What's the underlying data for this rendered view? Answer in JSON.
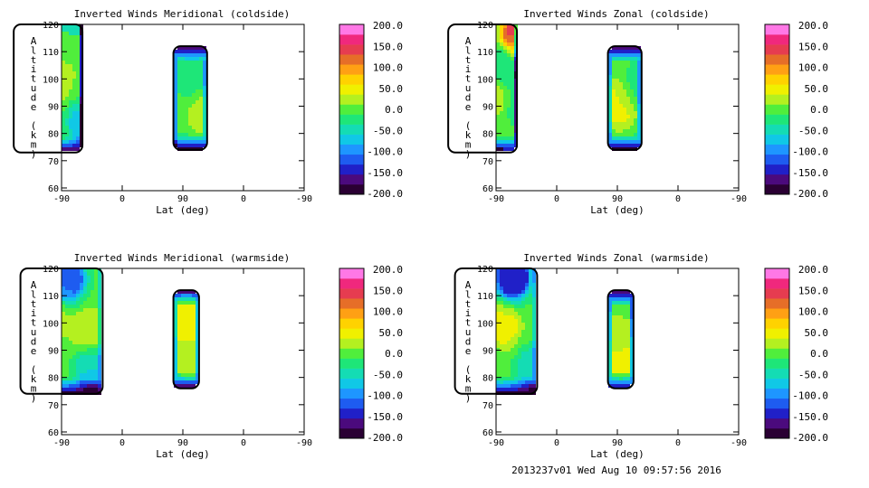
{
  "footer": "2013237v01 Wed Aug 10 09:57:56 2016",
  "colorbar": {
    "tick_labels": [
      "200.0",
      "150.0",
      "100.0",
      "50.0",
      "0.0",
      "-50.0",
      "-100.0",
      "-150.0",
      "-200.0"
    ],
    "range": [
      -200,
      200
    ],
    "levels": 17,
    "colors": [
      "#2a0033",
      "#4b0a7d",
      "#2020c8",
      "#1e5cf0",
      "#1e96ff",
      "#10c8e6",
      "#14dcb4",
      "#1ee678",
      "#50ee3c",
      "#b4f020",
      "#f0f000",
      "#ffd200",
      "#ffa014",
      "#e66e28",
      "#e63c50",
      "#f0287d",
      "#ff78e6"
    ]
  },
  "chart_data": [
    {
      "type": "heatmap",
      "title": "Inverted Winds Meridional (coldside)",
      "xlabel": "Lat (deg)",
      "ylabel": "Altitude (km)",
      "x_tick_labels": [
        "-90",
        "0",
        "90",
        "0",
        "-90"
      ],
      "y_tick_labels": [
        "60",
        "70",
        "80",
        "90",
        "100",
        "110",
        "120"
      ],
      "ylim": [
        59,
        120
      ],
      "xlim": [
        0,
        360
      ],
      "blobs": [
        {
          "lat": -75,
          "alt": 101,
          "value": 45
        },
        {
          "lat": -60,
          "alt": 112,
          "value": 25
        },
        {
          "lat": -5,
          "alt": 99,
          "value": 20
        },
        {
          "lat": 40,
          "alt": 97,
          "value": 5
        },
        {
          "lat": -50,
          "alt": 86,
          "value": -45
        },
        {
          "lat": 35,
          "alt": 84,
          "value": -75
        },
        {
          "lat": 217,
          "alt": 88,
          "value": 35
        },
        {
          "lat": 195,
          "alt": 100,
          "value": -25
        }
      ]
    },
    {
      "type": "heatmap",
      "title": "Inverted Winds Zonal (coldside)",
      "xlabel": "Lat (deg)",
      "ylabel": "Altitude (km)",
      "x_tick_labels": [
        "-90",
        "0",
        "90",
        "0",
        "-90"
      ],
      "y_tick_labels": [
        "60",
        "70",
        "80",
        "90",
        "100",
        "110",
        "120"
      ],
      "ylim": [
        59,
        120
      ],
      "xlim": [
        0,
        360
      ],
      "blobs": [
        {
          "lat": -70,
          "alt": 116,
          "value": 75
        },
        {
          "lat": 35,
          "alt": 117,
          "value": 140
        },
        {
          "lat": -10,
          "alt": 95,
          "value": 40
        },
        {
          "lat": -60,
          "alt": 90,
          "value": -45
        },
        {
          "lat": 40,
          "alt": 90,
          "value": -25
        },
        {
          "lat": 10,
          "alt": 104,
          "value": -40
        },
        {
          "lat": 183,
          "alt": 91,
          "value": 45
        },
        {
          "lat": 210,
          "alt": 97,
          "value": -30
        }
      ]
    },
    {
      "type": "heatmap",
      "title": "Inverted Winds Meridional (warmside)",
      "xlabel": "Lat (deg)",
      "ylabel": "Altitude (km)",
      "x_tick_labels": [
        "-90",
        "0",
        "90",
        "0",
        "-90"
      ],
      "y_tick_labels": [
        "60",
        "70",
        "80",
        "90",
        "100",
        "110",
        "120"
      ],
      "ylim": [
        59,
        120
      ],
      "xlim": [
        0,
        360
      ],
      "blobs": [
        {
          "lat": -60,
          "alt": 114,
          "value": -95
        },
        {
          "lat": 10,
          "alt": 116,
          "value": -110
        },
        {
          "lat": -20,
          "alt": 102,
          "value": 40
        },
        {
          "lat": 40,
          "alt": 97,
          "value": 30
        },
        {
          "lat": -50,
          "alt": 86,
          "value": -30
        },
        {
          "lat": 45,
          "alt": 83,
          "value": -60
        },
        {
          "lat": 185,
          "alt": 102,
          "value": 45
        },
        {
          "lat": 190,
          "alt": 87,
          "value": 30
        }
      ]
    },
    {
      "type": "heatmap",
      "title": "Inverted Winds Zonal (warmside)",
      "xlabel": "Lat (deg)",
      "ylabel": "Altitude (km)",
      "x_tick_labels": [
        "-90",
        "0",
        "90",
        "0",
        "-90"
      ],
      "y_tick_labels": [
        "60",
        "70",
        "80",
        "90",
        "100",
        "110",
        "120"
      ],
      "ylim": [
        59,
        120
      ],
      "xlim": [
        0,
        360
      ],
      "blobs": [
        {
          "lat": -65,
          "alt": 101,
          "value": 75
        },
        {
          "lat": 10,
          "alt": 99,
          "value": 40
        },
        {
          "lat": -40,
          "alt": 114,
          "value": -100
        },
        {
          "lat": 25,
          "alt": 117,
          "value": -150
        },
        {
          "lat": -30,
          "alt": 86,
          "value": -30
        },
        {
          "lat": 55,
          "alt": 83,
          "value": -55
        },
        {
          "lat": 178,
          "alt": 94,
          "value": 25
        },
        {
          "lat": 185,
          "alt": 86,
          "value": 45
        }
      ]
    }
  ]
}
